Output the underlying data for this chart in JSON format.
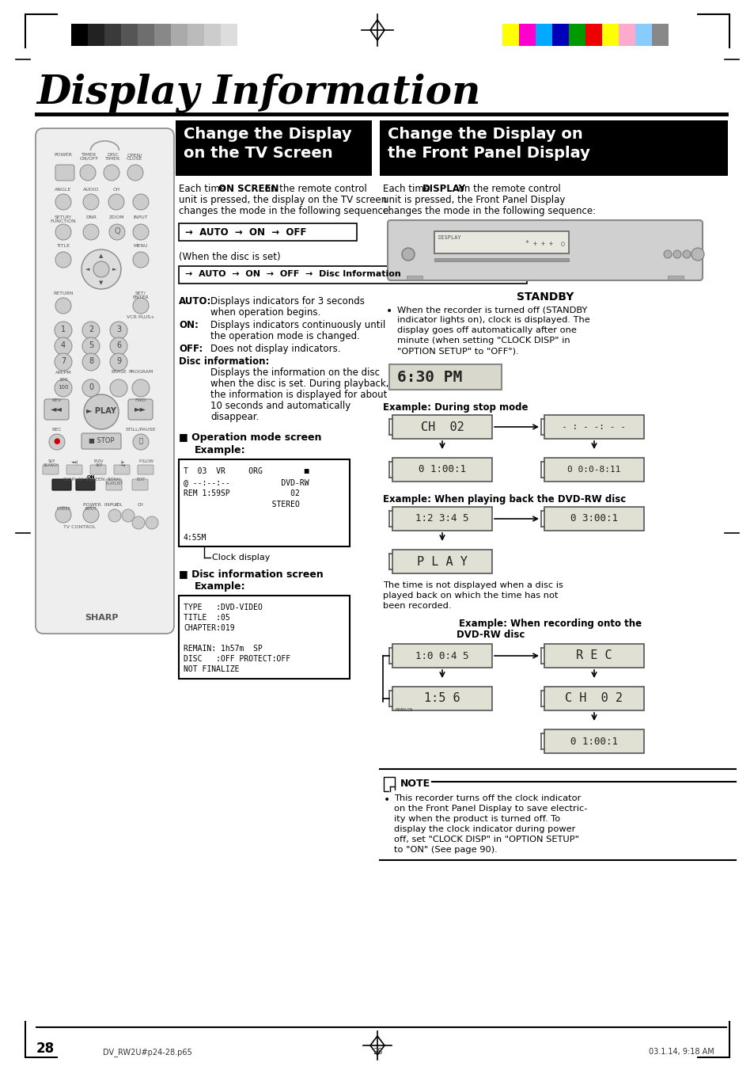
{
  "page_title": "Display Information",
  "section1_title": "Change the Display\non the TV Screen",
  "section2_title": "Change the Display on\nthe Front Panel Display",
  "bg_color": "#ffffff",
  "section_header_bg": "#000000",
  "grayscale_colors": [
    "#000000",
    "#222222",
    "#3a3a3a",
    "#555555",
    "#6e6e6e",
    "#888888",
    "#aaaaaa",
    "#bbbbbb",
    "#cccccc",
    "#dddddd",
    "#ffffff"
  ],
  "color_bars": [
    "#ffff00",
    "#ff00cc",
    "#00aaff",
    "#0000bb",
    "#009900",
    "#ee0000",
    "#ffff00",
    "#ffaacc",
    "#88ccff",
    "#888888"
  ],
  "page_number": "28",
  "footer_left": "DV_RW2U#p24-28.p65",
  "footer_center": "28",
  "footer_right": "03.1.14, 9:18 AM",
  "clock_display_label": "Clock display",
  "standby_label": "STANDBY",
  "op_mode_lines": [
    "T  03  VR     ORG         ■",
    "@ --:--:--           DVD-RW",
    "REM 1:59SP             02",
    "                   STEREO",
    "",
    "",
    "4:55M"
  ],
  "disc_info_lines": [
    "TYPE   :DVD-VIDEO",
    "TITLE  :05",
    "CHAPTER:019",
    "",
    "REMAIN: 1h57m  SP",
    "DISC   :OFF PROTECT:OFF",
    "NOT FINALIZE"
  ],
  "time_note_lines": [
    "The time is not displayed when a disc is",
    "played back on which the time has not",
    "been recorded."
  ],
  "note_lines": [
    "This recorder turns off the clock indicator",
    "on the Front Panel Display to save electric-",
    "ity when the product is turned off. To",
    "display the clock indicator during power",
    "off, set \"CLOCK DISP\" in \"OPTION SETUP\"",
    "to \"ON\" (See page 90)."
  ]
}
